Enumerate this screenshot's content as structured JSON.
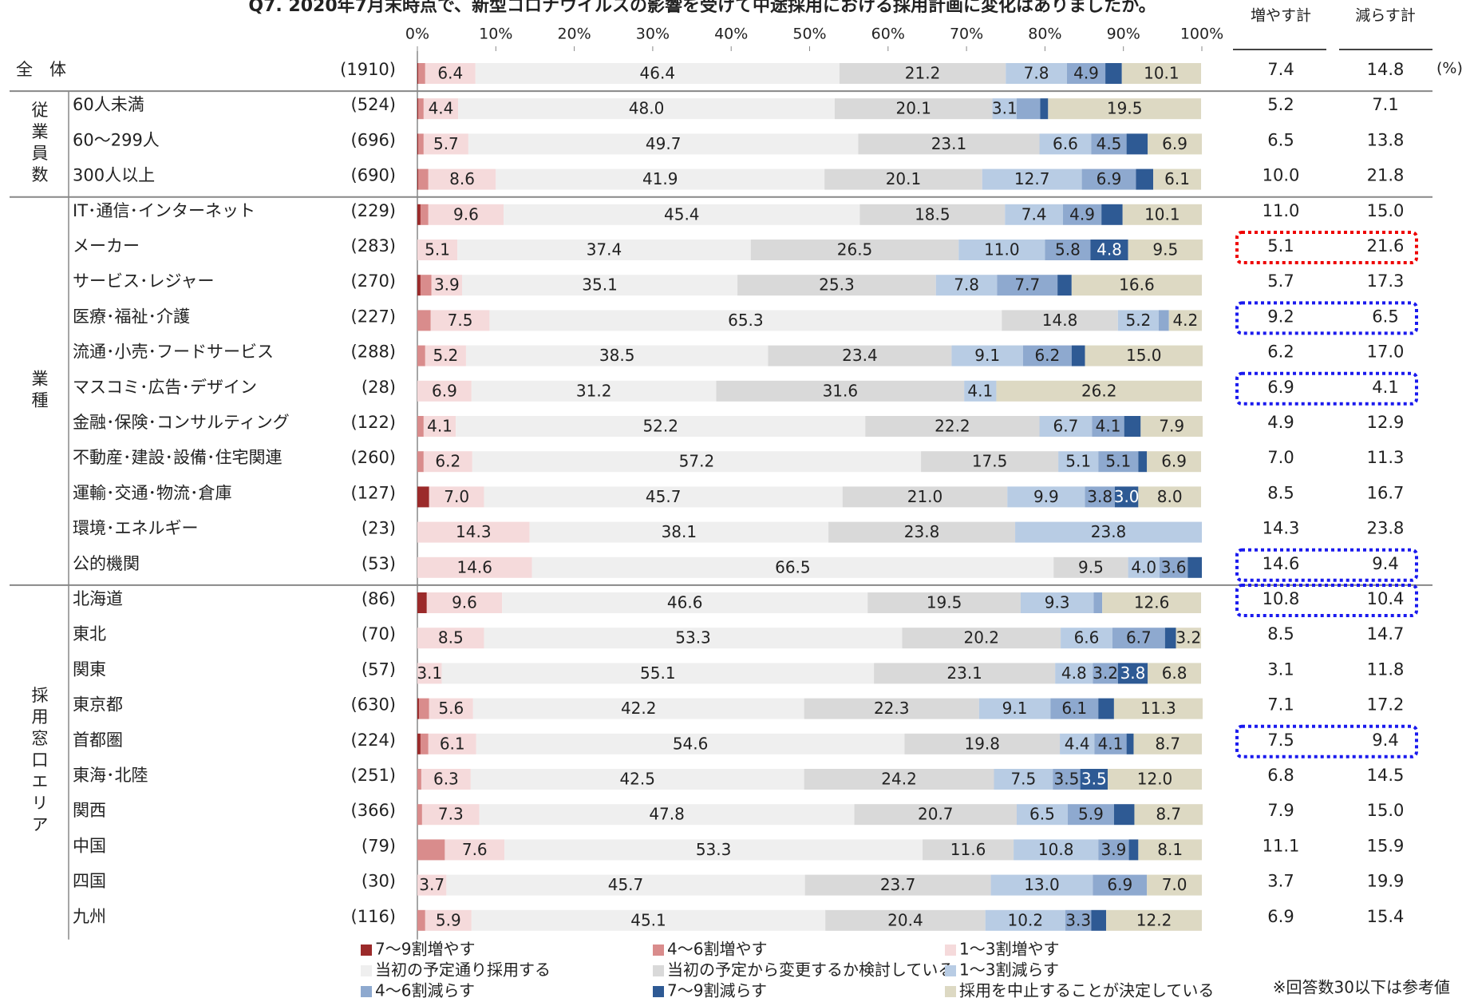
{
  "chart_data": {
    "type": "stacked_barh",
    "title": "Q7. 2020年7月末時点で、新型コロナウイルスの影響を受けて中途採用における採用計画に変化はありましたか。",
    "xlim": [
      0,
      100
    ],
    "xticks": [
      {
        "value": 0,
        "label": "0%"
      },
      {
        "value": 10,
        "label": "10%"
      },
      {
        "value": 20,
        "label": "20%"
      },
      {
        "value": 30,
        "label": "30%"
      },
      {
        "value": 40,
        "label": "40%"
      },
      {
        "value": 50,
        "label": "50%"
      },
      {
        "value": 60,
        "label": "60%"
      },
      {
        "value": 70,
        "label": "70%"
      },
      {
        "value": 80,
        "label": "80%"
      },
      {
        "value": 90,
        "label": "90%"
      },
      {
        "value": 100,
        "label": "100%"
      }
    ],
    "categories": [
      "全　体",
      "60人未満",
      "60～299人",
      "300人以上",
      "IT･通信･インターネット",
      "メーカー",
      "サービス･レジャー",
      "医療･福祉･介護",
      "流通･小売･フードサービス",
      "マスコミ･広告･デザイン",
      "金融･保険･コンサルティング",
      "不動産･建設･設備･住宅関連",
      "運輸･交通･物流･倉庫",
      "環境･エネルギー",
      "公的機関",
      "北海道",
      "東北",
      "関東",
      "東京都",
      "首都圏",
      "東海･北陸",
      "関西",
      "中国",
      "四国",
      "九州"
    ],
    "counts": [
      "(1910)",
      "(524)",
      "(696)",
      "(690)",
      "(229)",
      "(283)",
      "(270)",
      "(227)",
      "(288)",
      "(28)",
      "(122)",
      "(260)",
      "(127)",
      "(23)",
      "(53)",
      "(86)",
      "(70)",
      "(57)",
      "(630)",
      "(224)",
      "(251)",
      "(366)",
      "(79)",
      "(30)",
      "(116)"
    ],
    "groups": [
      {
        "label": "従業員数",
        "rows": [
          1,
          3
        ]
      },
      {
        "label": "業種",
        "rows": [
          4,
          14
        ]
      },
      {
        "label": "採用窓口エリア",
        "rows": [
          15,
          24
        ]
      }
    ],
    "series": [
      {
        "name": "7～9割増やす",
        "color": "#9b2a2a",
        "values": [
          0.1,
          0.1,
          0.1,
          0.1,
          0.4,
          0,
          0.4,
          0,
          0,
          0,
          0,
          0,
          1.5,
          0,
          0,
          1.2,
          0,
          0,
          0.2,
          0.4,
          0,
          0,
          0,
          0,
          0
        ],
        "value_labels": [
          null,
          null,
          null,
          null,
          null,
          null,
          null,
          null,
          null,
          null,
          null,
          null,
          null,
          null,
          null,
          null,
          null,
          null,
          null,
          null,
          null,
          null,
          null,
          null,
          null
        ]
      },
      {
        "name": "4～6割増やす",
        "color": "#d98c8c",
        "values": [
          0.9,
          0.7,
          0.7,
          1.3,
          1.0,
          0,
          1.4,
          1.7,
          1.0,
          0,
          0.8,
          0.8,
          0,
          0,
          0,
          0,
          0,
          0,
          1.3,
          1.0,
          0.5,
          0.6,
          3.5,
          0,
          1.0
        ],
        "value_labels": [
          null,
          null,
          null,
          null,
          null,
          null,
          null,
          null,
          null,
          null,
          null,
          null,
          null,
          null,
          null,
          null,
          null,
          null,
          null,
          null,
          null,
          null,
          null,
          null,
          null
        ]
      },
      {
        "name": "1～3割増やす",
        "color": "#f5dadb",
        "values": [
          6.4,
          4.4,
          5.7,
          8.6,
          9.6,
          5.1,
          3.9,
          7.5,
          5.2,
          6.9,
          4.1,
          6.2,
          7.0,
          14.3,
          14.6,
          9.6,
          8.5,
          3.1,
          5.6,
          6.1,
          6.3,
          7.3,
          7.6,
          3.7,
          5.9
        ],
        "value_labels": [
          "6.4",
          "4.4",
          "5.7",
          "8.6",
          "9.6",
          "5.1",
          "3.9",
          "7.5",
          "5.2",
          "6.9",
          "4.1",
          "6.2",
          "7.0",
          "14.3",
          "14.6",
          "9.6",
          "8.5",
          "3.1",
          "5.6",
          "6.1",
          "6.3",
          "7.3",
          "7.6",
          "3.7",
          "5.9"
        ]
      },
      {
        "name": "当初の予定通り採用する",
        "color": "#efefef",
        "values": [
          46.4,
          48.0,
          49.7,
          41.9,
          45.4,
          37.4,
          35.1,
          65.3,
          38.5,
          31.2,
          52.2,
          57.2,
          45.7,
          38.1,
          66.5,
          46.6,
          53.3,
          55.1,
          42.2,
          54.6,
          42.5,
          47.8,
          53.3,
          45.7,
          45.1
        ],
        "value_labels": [
          "46.4",
          "48.0",
          "49.7",
          "41.9",
          "45.4",
          "37.4",
          "35.1",
          "65.3",
          "38.5",
          "31.2",
          "52.2",
          "57.2",
          "45.7",
          "38.1",
          "66.5",
          "46.6",
          "53.3",
          "55.1",
          "42.2",
          "54.6",
          "42.5",
          "47.8",
          "53.3",
          "45.7",
          "45.1"
        ]
      },
      {
        "name": "当初の予定から変更するか検討している",
        "color": "#d9d9d9",
        "values": [
          21.2,
          20.1,
          23.1,
          20.1,
          18.5,
          26.5,
          25.3,
          14.8,
          23.4,
          31.6,
          22.2,
          17.5,
          21.0,
          23.8,
          9.5,
          19.5,
          20.2,
          23.1,
          22.3,
          19.8,
          24.2,
          20.7,
          11.6,
          23.7,
          20.4
        ],
        "value_labels": [
          "21.2",
          "20.1",
          "23.1",
          "20.1",
          "18.5",
          "26.5",
          "25.3",
          "14.8",
          "23.4",
          "31.6",
          "22.2",
          "17.5",
          "21.0",
          "23.8",
          "9.5",
          "19.5",
          "20.2",
          "23.1",
          "22.3",
          "19.8",
          "24.2",
          "20.7",
          "11.6",
          "23.7",
          "20.4"
        ]
      },
      {
        "name": "1～3割減らす",
        "color": "#b8cce4",
        "values": [
          7.8,
          3.1,
          6.6,
          12.7,
          7.4,
          11.0,
          7.8,
          5.2,
          9.1,
          4.1,
          6.7,
          5.1,
          9.9,
          23.8,
          4.0,
          9.3,
          6.6,
          4.8,
          9.1,
          4.4,
          7.5,
          6.5,
          10.8,
          13.0,
          10.2
        ],
        "value_labels": [
          "7.8",
          "3.1",
          "6.6",
          "12.7",
          "7.4",
          "11.0",
          "7.8",
          "5.2",
          "9.1",
          "4.1",
          "6.7",
          "5.1",
          "9.9",
          "23.8",
          "4.0",
          "9.3",
          "6.6",
          "4.8",
          "9.1",
          "4.4",
          "7.5",
          "6.5",
          "10.8",
          "13.0",
          "10.2"
        ]
      },
      {
        "name": "4～6割減らす",
        "color": "#8ea9cf",
        "values": [
          4.9,
          3.0,
          4.5,
          6.9,
          4.9,
          5.8,
          7.7,
          1.3,
          6.2,
          0,
          4.1,
          5.1,
          3.8,
          0,
          3.6,
          1.1,
          6.7,
          3.2,
          6.1,
          4.1,
          3.5,
          5.9,
          3.9,
          6.9,
          3.3
        ],
        "value_labels": [
          "4.9",
          null,
          "4.5",
          "6.9",
          "4.9",
          "5.8",
          "7.7",
          null,
          "6.2",
          null,
          "4.1",
          "5.1",
          "3.8",
          null,
          "3.6",
          null,
          "6.7",
          "3.2",
          "6.1",
          "4.1",
          "3.5",
          "5.9",
          "3.9",
          "6.9",
          "3.3"
        ]
      },
      {
        "name": "7～9割減らす",
        "color": "#2e5a94",
        "values": [
          2.1,
          1.0,
          2.7,
          2.2,
          2.7,
          4.8,
          1.8,
          0,
          1.7,
          0,
          2.1,
          1.1,
          3.0,
          0,
          1.8,
          0,
          1.4,
          3.8,
          2.0,
          0.9,
          3.5,
          2.6,
          1.2,
          0,
          1.9
        ],
        "value_labels": [
          null,
          null,
          null,
          null,
          null,
          "4.8",
          null,
          null,
          null,
          null,
          null,
          null,
          "3.0",
          null,
          null,
          null,
          null,
          "3.8",
          null,
          null,
          "3.5",
          null,
          null,
          null,
          null
        ]
      },
      {
        "name": "採用を中止することが決定している",
        "color": "#ddd9c3",
        "values": [
          10.1,
          19.5,
          6.9,
          6.1,
          10.1,
          9.5,
          16.6,
          4.2,
          15.0,
          26.2,
          7.9,
          6.9,
          8.0,
          0,
          0,
          12.6,
          3.2,
          6.8,
          11.3,
          8.7,
          12.0,
          8.7,
          8.1,
          7.0,
          12.2
        ],
        "value_labels": [
          "10.1",
          "19.5",
          "6.9",
          "6.1",
          "10.1",
          "9.5",
          "16.6",
          "4.2",
          "15.0",
          "26.2",
          "7.9",
          "6.9",
          "8.0",
          null,
          null,
          "12.6",
          "3.2",
          "6.8",
          "11.3",
          "8.7",
          "12.0",
          "8.7",
          "8.1",
          "7.0",
          "12.2"
        ]
      }
    ],
    "increase_header": "増やす計",
    "decrease_header": "減らす計",
    "unit_label": "(%)",
    "increase_totals": [
      "7.4",
      "5.2",
      "6.5",
      "10.0",
      "11.0",
      "5.1",
      "5.7",
      "9.2",
      "6.2",
      "6.9",
      "4.9",
      "7.0",
      "8.5",
      "14.3",
      "14.6",
      "10.8",
      "8.5",
      "3.1",
      "7.1",
      "7.5",
      "6.8",
      "7.9",
      "11.1",
      "3.7",
      "6.9"
    ],
    "decrease_totals": [
      "14.8",
      "7.1",
      "13.8",
      "21.8",
      "15.0",
      "21.6",
      "17.3",
      "6.5",
      "17.0",
      "4.1",
      "12.9",
      "11.3",
      "16.7",
      "23.8",
      "9.4",
      "10.4",
      "14.7",
      "11.8",
      "17.2",
      "9.4",
      "14.5",
      "15.0",
      "15.9",
      "19.9",
      "15.4"
    ],
    "footnote": "※回答数30以下は参考値"
  }
}
